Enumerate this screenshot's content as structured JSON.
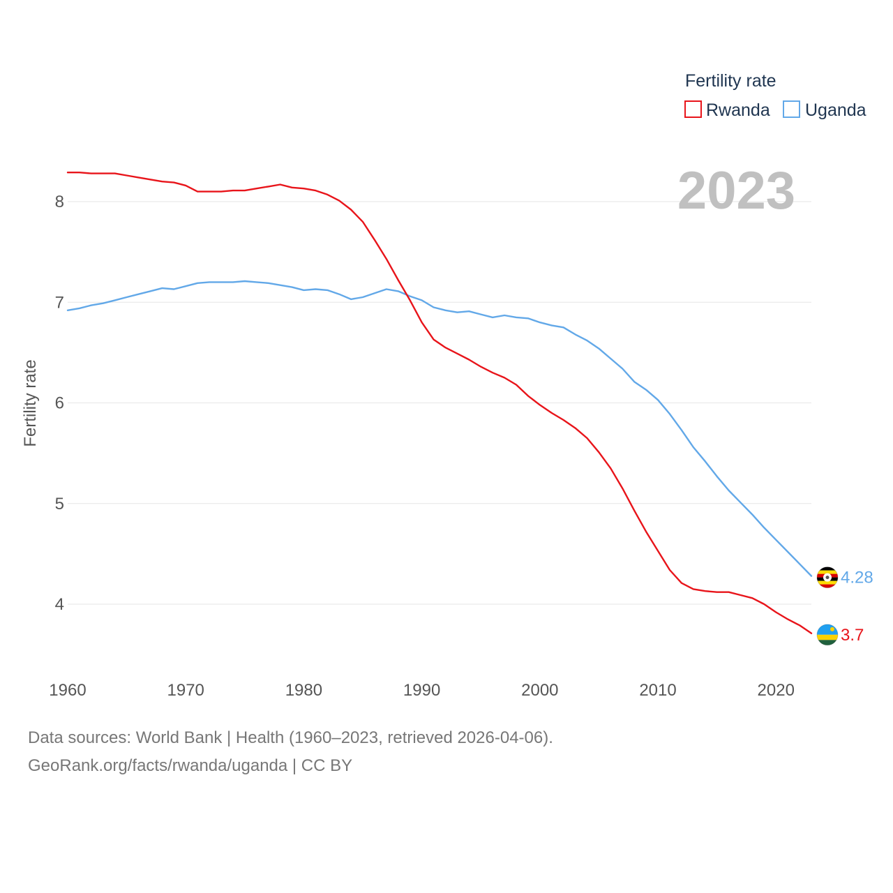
{
  "chart_data": {
    "type": "line",
    "title": "",
    "legend_title": "Fertility rate",
    "legend_position": "top-right",
    "ylabel": "Fertility rate",
    "xlabel": "",
    "year_watermark": "2023",
    "xlim": [
      1960,
      2023
    ],
    "ylim": [
      3.5,
      8.5
    ],
    "x_ticks": [
      1960,
      1970,
      1980,
      1990,
      2000,
      2010,
      2020
    ],
    "y_ticks": [
      4,
      5,
      6,
      7,
      8
    ],
    "grid": true,
    "x": [
      1960,
      1961,
      1962,
      1963,
      1964,
      1965,
      1966,
      1967,
      1968,
      1969,
      1970,
      1971,
      1972,
      1973,
      1974,
      1975,
      1976,
      1977,
      1978,
      1979,
      1980,
      1981,
      1982,
      1983,
      1984,
      1985,
      1986,
      1987,
      1988,
      1989,
      1990,
      1991,
      1992,
      1993,
      1994,
      1995,
      1996,
      1997,
      1998,
      1999,
      2000,
      2001,
      2002,
      2003,
      2004,
      2005,
      2006,
      2007,
      2008,
      2009,
      2010,
      2011,
      2012,
      2013,
      2014,
      2015,
      2016,
      2017,
      2018,
      2019,
      2020,
      2021,
      2022,
      2023
    ],
    "series": [
      {
        "name": "Rwanda",
        "color": "#e8141a",
        "end_label": "3.7",
        "flag": "rwanda-flag",
        "values": [
          8.29,
          8.29,
          8.28,
          8.28,
          8.28,
          8.26,
          8.24,
          8.22,
          8.2,
          8.19,
          8.16,
          8.1,
          8.1,
          8.1,
          8.11,
          8.11,
          8.13,
          8.15,
          8.17,
          8.14,
          8.13,
          8.11,
          8.07,
          8.01,
          7.92,
          7.8,
          7.62,
          7.43,
          7.22,
          7.02,
          6.8,
          6.63,
          6.55,
          6.49,
          6.43,
          6.36,
          6.3,
          6.25,
          6.18,
          6.07,
          5.98,
          5.9,
          5.83,
          5.75,
          5.65,
          5.51,
          5.35,
          5.15,
          4.93,
          4.72,
          4.53,
          4.34,
          4.21,
          4.15,
          4.13,
          4.12,
          4.12,
          4.09,
          4.06,
          4.0,
          3.92,
          3.85,
          3.79,
          3.71
        ]
      },
      {
        "name": "Uganda",
        "color": "#62a8e8",
        "end_label": "4.28",
        "flag": "uganda-flag",
        "values": [
          6.92,
          6.94,
          6.97,
          6.99,
          7.02,
          7.05,
          7.08,
          7.11,
          7.14,
          7.13,
          7.16,
          7.19,
          7.2,
          7.2,
          7.2,
          7.21,
          7.2,
          7.19,
          7.17,
          7.15,
          7.12,
          7.13,
          7.12,
          7.08,
          7.03,
          7.05,
          7.09,
          7.13,
          7.11,
          7.06,
          7.02,
          6.95,
          6.92,
          6.9,
          6.91,
          6.88,
          6.85,
          6.87,
          6.85,
          6.84,
          6.8,
          6.77,
          6.75,
          6.68,
          6.62,
          6.54,
          6.44,
          6.34,
          6.21,
          6.13,
          6.03,
          5.89,
          5.73,
          5.56,
          5.42,
          5.27,
          5.13,
          5.01,
          4.89,
          4.76,
          4.64,
          4.52,
          4.4,
          4.28
        ]
      }
    ]
  },
  "footer": {
    "line1": "Data sources: World Bank | Health (1960–2023, retrieved 2026-04-06).",
    "line2": "GeoRank.org/facts/rwanda/uganda | CC BY"
  }
}
